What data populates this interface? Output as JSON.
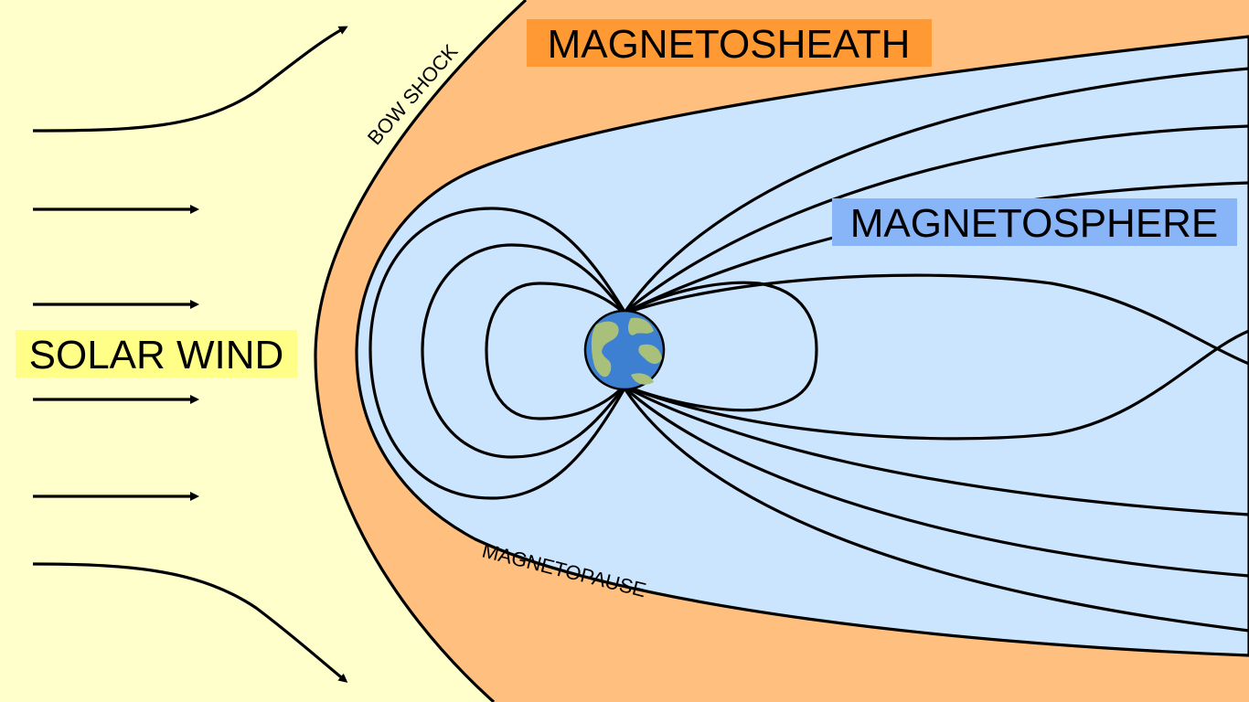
{
  "labels": {
    "magnetosheath": "MAGNETOSHEATH",
    "magnetosphere": "MAGNETOSPHERE",
    "solar_wind": "SOLAR WIND",
    "bow_shock": "BOW SHOCK",
    "magnetopause": "MAGNETOPAUSE"
  },
  "colors": {
    "solar_wind_region": "#FFFFCC",
    "magnetosheath_region": "#FFBF7F",
    "magnetosphere_region": "#CCE5FF",
    "magnetosheath_label_bg": "#FF9933",
    "magnetosphere_label_bg": "#88B4F8",
    "solar_wind_label_bg": "#FFFF88",
    "earth_ocean": "#3D7FD1",
    "earth_land": "#A8C07A",
    "field_lines": "#000000"
  },
  "icons": {
    "planet": "earth-icon",
    "flow": "arrow-right-icon"
  }
}
